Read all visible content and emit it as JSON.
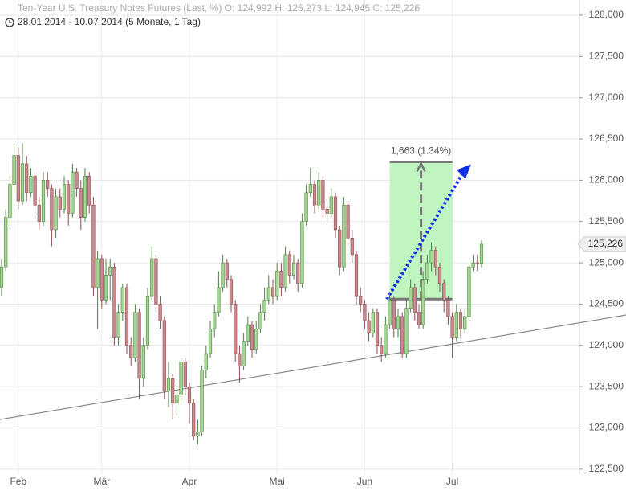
{
  "chart_data": {
    "type": "candlestick",
    "title": "Ten-Year U.S. Treasury Notes Futures (Last, %)  O: 124,992  H: 125,273  L: 124,945  C: 125,226",
    "subtitle": "28.01.2014 - 10.07.2014 (5 Monate, 1 Tag)",
    "categories": [
      null,
      null,
      null,
      null,
      "Feb",
      null,
      null,
      null,
      null,
      null,
      null,
      null,
      null,
      null,
      null,
      null,
      null,
      null,
      null,
      null,
      null,
      null,
      null,
      null,
      "Mär",
      null,
      null,
      null,
      null,
      null,
      null,
      null,
      null,
      null,
      null,
      null,
      null,
      null,
      null,
      null,
      null,
      null,
      null,
      null,
      null,
      "Apr",
      null,
      null,
      null,
      null,
      null,
      null,
      null,
      null,
      null,
      null,
      null,
      null,
      null,
      null,
      null,
      null,
      null,
      null,
      null,
      null,
      "Mai",
      null,
      null,
      null,
      null,
      null,
      null,
      null,
      null,
      null,
      null,
      null,
      null,
      null,
      null,
      null,
      null,
      null,
      null,
      null,
      null,
      "Jun",
      null,
      null,
      null,
      null,
      null,
      null,
      null,
      null,
      null,
      null,
      null,
      null,
      null,
      null,
      null,
      null,
      null,
      null,
      null,
      null,
      "Jul",
      null,
      null,
      null,
      null,
      null,
      null,
      null
    ],
    "open": [
      124.7,
      124.95,
      125.55,
      125.95,
      126.3,
      125.75,
      126.2,
      125.85,
      126.05,
      125.7,
      125.5,
      126.0,
      125.9,
      125.4,
      125.8,
      125.65,
      125.95,
      125.6,
      126.1,
      125.9,
      125.55,
      126.05,
      125.7,
      124.7,
      125.05,
      124.55,
      124.85,
      124.95,
      124.1,
      124.4,
      124.7,
      124.0,
      123.85,
      124.4,
      123.6,
      124.0,
      124.6,
      125.05,
      124.5,
      124.3,
      123.45,
      123.6,
      123.3,
      123.4,
      123.8,
      123.5,
      123.3,
      122.9,
      122.95,
      123.7,
      123.9,
      124.2,
      124.4,
      124.7,
      125.0,
      124.8,
      124.5,
      123.9,
      123.75,
      124.05,
      124.25,
      123.95,
      124.2,
      124.4,
      124.55,
      124.7,
      124.6,
      124.9,
      124.7,
      125.1,
      124.85,
      125.0,
      124.75,
      125.5,
      125.85,
      125.95,
      125.7,
      126.0,
      125.65,
      125.6,
      125.8,
      125.4,
      124.95,
      125.7,
      125.3,
      125.1,
      124.6,
      124.5,
      124.3,
      124.15,
      124.4,
      124.0,
      123.9,
      124.25,
      124.55,
      124.2,
      124.35,
      123.9,
      124.45,
      124.7,
      124.4,
      124.25,
      124.8,
      125.0,
      125.15,
      124.95,
      124.75,
      124.55,
      124.35,
      124.1,
      124.4,
      124.2,
      124.35,
      124.95,
      125.0,
      124.992
    ],
    "high": [
      125.05,
      125.65,
      126.05,
      126.45,
      126.4,
      126.45,
      126.3,
      126.15,
      126.1,
      125.8,
      126.1,
      126.1,
      125.95,
      125.9,
      125.9,
      126.05,
      126.0,
      126.2,
      126.15,
      126.0,
      126.15,
      126.1,
      125.8,
      125.15,
      125.1,
      125.05,
      125.05,
      125.0,
      124.5,
      124.75,
      124.75,
      124.1,
      124.5,
      124.45,
      124.1,
      124.7,
      125.2,
      125.1,
      124.6,
      124.35,
      123.8,
      123.65,
      123.55,
      123.85,
      123.85,
      123.55,
      123.35,
      123.1,
      123.75,
      124.0,
      124.3,
      124.5,
      124.9,
      125.1,
      125.05,
      124.85,
      124.55,
      124.0,
      124.15,
      124.35,
      124.3,
      124.3,
      124.5,
      124.7,
      124.85,
      124.8,
      125.0,
      125.0,
      125.2,
      125.15,
      125.1,
      125.05,
      125.6,
      125.95,
      126.15,
      126.0,
      126.1,
      126.05,
      125.75,
      125.9,
      125.85,
      125.45,
      125.8,
      125.75,
      125.4,
      125.15,
      124.7,
      124.55,
      124.4,
      124.45,
      124.45,
      124.1,
      124.35,
      124.65,
      124.6,
      124.45,
      124.4,
      124.55,
      124.8,
      124.75,
      124.5,
      124.9,
      125.1,
      125.25,
      125.2,
      125.0,
      124.8,
      124.6,
      124.4,
      124.5,
      124.45,
      124.45,
      125.0,
      125.1,
      125.1,
      125.273
    ],
    "low": [
      124.6,
      124.9,
      125.45,
      125.85,
      125.65,
      125.7,
      125.75,
      125.8,
      125.55,
      125.4,
      125.45,
      125.8,
      125.2,
      125.3,
      125.55,
      125.6,
      125.45,
      125.55,
      125.8,
      125.4,
      125.5,
      125.6,
      124.6,
      124.2,
      124.45,
      124.5,
      124.55,
      124.0,
      124.0,
      124.3,
      123.9,
      123.75,
      123.8,
      123.35,
      123.5,
      123.95,
      124.55,
      124.4,
      124.2,
      123.35,
      123.25,
      123.1,
      123.15,
      123.3,
      123.4,
      123.05,
      122.85,
      122.8,
      122.9,
      123.6,
      123.85,
      124.1,
      124.35,
      124.65,
      124.7,
      124.4,
      123.8,
      123.55,
      123.7,
      124.0,
      123.85,
      123.9,
      124.15,
      124.3,
      124.5,
      124.5,
      124.55,
      124.6,
      124.65,
      124.75,
      124.8,
      124.65,
      124.7,
      125.45,
      125.8,
      125.6,
      125.65,
      125.55,
      125.5,
      125.55,
      125.3,
      124.85,
      124.9,
      125.2,
      125.0,
      124.5,
      124.4,
      124.2,
      124.05,
      124.1,
      123.9,
      123.8,
      123.85,
      124.2,
      124.1,
      124.1,
      123.85,
      123.85,
      124.4,
      124.3,
      124.2,
      124.2,
      124.75,
      124.9,
      124.85,
      124.65,
      124.4,
      124.25,
      123.85,
      124.05,
      124.1,
      124.15,
      124.3,
      124.9,
      124.9,
      124.945
    ],
    "close": [
      124.95,
      125.55,
      125.95,
      126.3,
      125.75,
      126.2,
      125.85,
      126.05,
      125.7,
      125.5,
      126.0,
      125.9,
      125.4,
      125.8,
      125.65,
      125.95,
      125.6,
      126.1,
      125.9,
      125.55,
      126.05,
      125.7,
      124.7,
      125.05,
      124.55,
      124.85,
      124.95,
      124.1,
      124.4,
      124.7,
      124.0,
      123.85,
      124.4,
      123.6,
      124.0,
      124.6,
      125.05,
      124.5,
      124.3,
      123.45,
      123.6,
      123.3,
      123.4,
      123.8,
      123.5,
      123.3,
      122.9,
      122.95,
      123.7,
      123.9,
      124.2,
      124.4,
      124.7,
      125.0,
      124.8,
      124.5,
      123.9,
      123.75,
      124.05,
      124.25,
      123.95,
      124.2,
      124.4,
      124.55,
      124.7,
      124.6,
      124.9,
      124.7,
      125.1,
      124.85,
      125.0,
      124.75,
      125.5,
      125.85,
      125.95,
      125.7,
      126.0,
      125.65,
      125.6,
      125.8,
      125.4,
      124.95,
      125.7,
      125.3,
      125.1,
      124.6,
      124.5,
      124.3,
      124.15,
      124.4,
      124.0,
      123.9,
      124.25,
      124.55,
      124.2,
      124.35,
      123.9,
      124.45,
      124.7,
      124.4,
      124.25,
      124.8,
      125.0,
      125.15,
      124.95,
      124.75,
      124.55,
      124.35,
      124.1,
      124.4,
      124.2,
      124.35,
      124.95,
      125.0,
      124.99,
      125.226
    ],
    "ylim": [
      122.44,
      128.185
    ],
    "yticks": [
      {
        "value": 122.5,
        "label": "122,500"
      },
      {
        "value": 123,
        "label": "123,000"
      },
      {
        "value": 123.5,
        "label": "123,500"
      },
      {
        "value": 124,
        "label": "124,000"
      },
      {
        "value": 124.5,
        "label": "124,500"
      },
      {
        "value": 125,
        "label": "125,000"
      },
      {
        "value": 125.5,
        "label": "125,500"
      },
      {
        "value": 126,
        "label": "126,000"
      },
      {
        "value": 126.5,
        "label": "126,500"
      },
      {
        "value": 127,
        "label": "127,000"
      },
      {
        "value": 127.5,
        "label": "127,500"
      },
      {
        "value": 128,
        "label": "128,000"
      }
    ],
    "grid": true,
    "up_color": "#a3d890",
    "down_color": "#c98a8c",
    "last_label": "125,226",
    "measure": {
      "label": "1,663 (1.34%)",
      "low": 124.56,
      "high": 126.223
    }
  }
}
